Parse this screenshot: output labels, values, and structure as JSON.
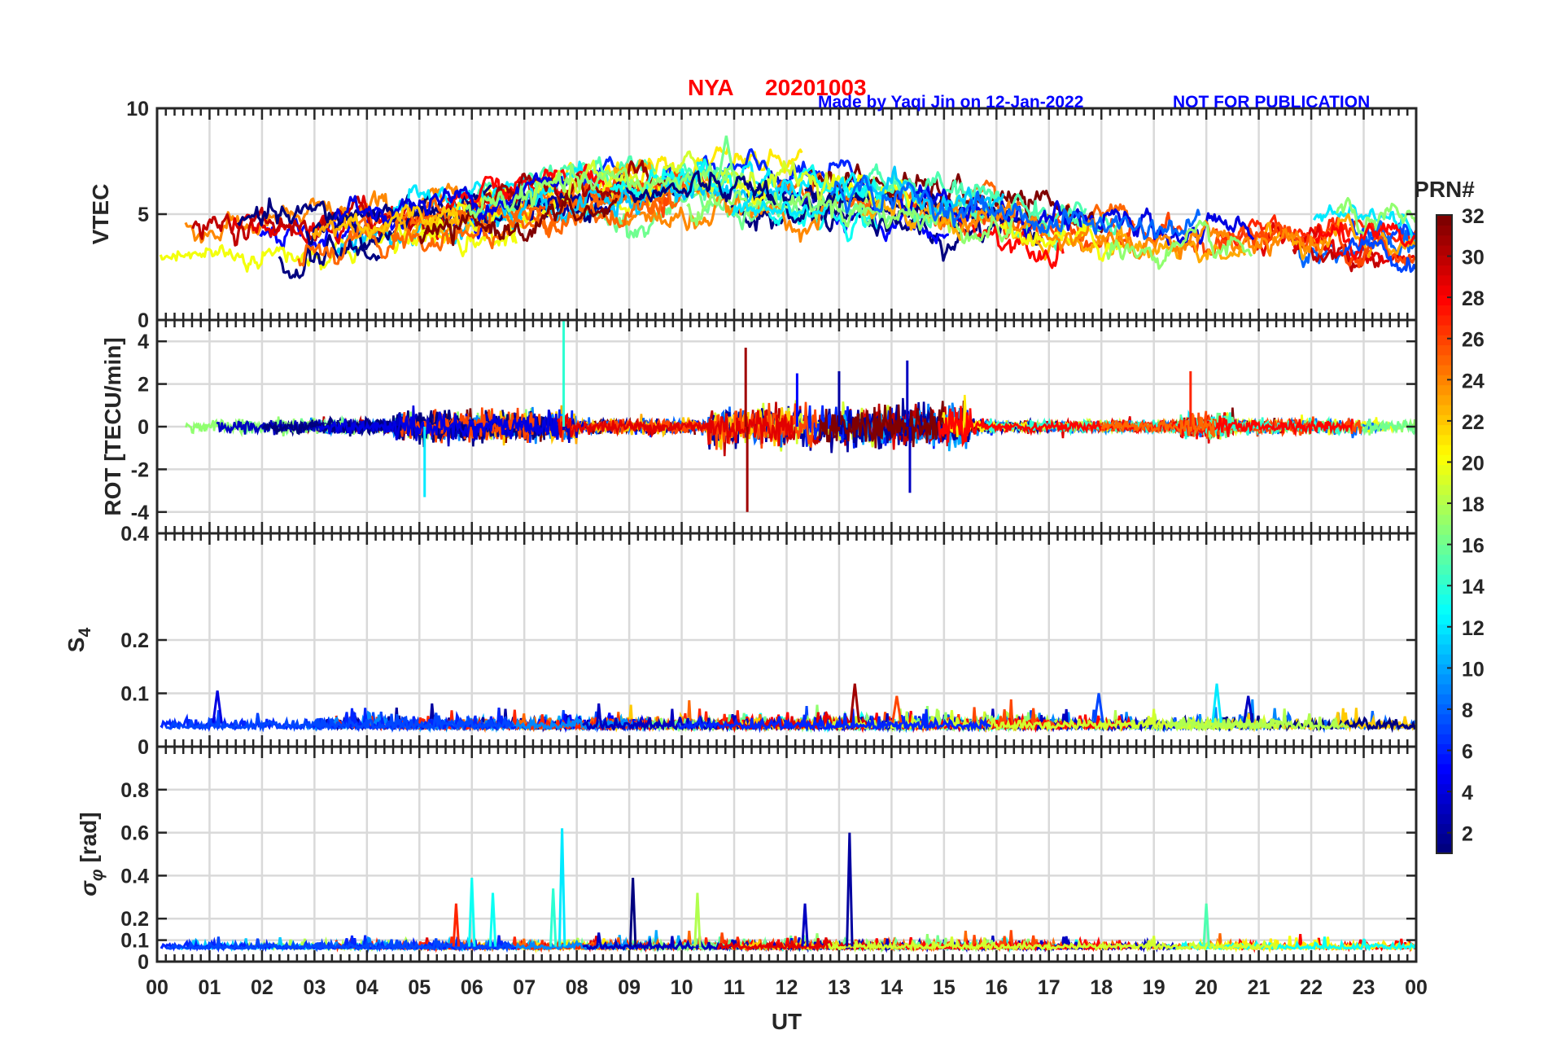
{
  "chart_data": {
    "type": "line",
    "title": {
      "station": "NYA",
      "date": "20201003",
      "credit": "Made by Yaqi Jin on 12-Jan-2022",
      "notice": "NOT FOR PUBLICATION"
    },
    "xlabel": "UT",
    "x_tick_labels": [
      "00",
      "01",
      "02",
      "03",
      "04",
      "05",
      "06",
      "07",
      "08",
      "09",
      "10",
      "11",
      "12",
      "13",
      "14",
      "15",
      "16",
      "17",
      "18",
      "19",
      "20",
      "21",
      "22",
      "23",
      "00"
    ],
    "xlim": [
      0,
      24
    ],
    "grid": true,
    "panels": [
      {
        "key": "vtec",
        "ylabel": "VTEC",
        "ylim": [
          0,
          10
        ],
        "y_tick_labels": [
          {
            "value": 0,
            "text": "0"
          },
          {
            "value": 5,
            "text": "5"
          },
          {
            "value": 10,
            "text": "10"
          }
        ],
        "series_summary": {
          "description_values": "VTEC per PRN, mostly 2.5 to 8",
          "envelope_x": [
            0,
            2,
            4,
            6,
            8,
            10,
            11,
            13,
            15,
            17,
            19,
            21,
            23,
            24
          ],
          "envelope_mean": [
            3.6,
            3.7,
            4.2,
            4.8,
            5.6,
            6.0,
            6.2,
            6.0,
            5.3,
            4.5,
            4.2,
            4.1,
            3.8,
            3.6
          ],
          "peak": {
            "x": 10.85,
            "y": 8.7
          }
        }
      },
      {
        "key": "rot",
        "ylabel": "ROT [TECU/min]",
        "ylim": [
          -5,
          5
        ],
        "y_tick_labels": [
          {
            "value": -4,
            "text": "-4"
          },
          {
            "value": -2,
            "text": "-2"
          },
          {
            "value": 0,
            "text": "0"
          },
          {
            "value": 2,
            "text": "2"
          },
          {
            "value": 4,
            "text": "4"
          }
        ],
        "spikes": [
          {
            "x": 7.75,
            "y": 5.0
          },
          {
            "x": 11.22,
            "y": 3.7
          },
          {
            "x": 11.25,
            "y": -4.0
          },
          {
            "x": 14.3,
            "y": 3.1
          },
          {
            "x": 14.35,
            "y": -3.1
          },
          {
            "x": 5.1,
            "y": -3.3
          },
          {
            "x": 19.7,
            "y": 2.6
          },
          {
            "x": 13.0,
            "y": 2.6
          },
          {
            "x": 12.2,
            "y": 2.5
          }
        ]
      },
      {
        "key": "s4",
        "ylabel": "S",
        "ylabel_sub": "4",
        "ylim": [
          0,
          0.4
        ],
        "y_tick_labels": [
          {
            "value": 0,
            "text": "0"
          },
          {
            "value": 0.1,
            "text": "0.1"
          },
          {
            "value": 0.2,
            "text": "0.2"
          },
          {
            "value": 0.4,
            "text": "0.4"
          }
        ],
        "baseline": 0.04,
        "spikes": [
          {
            "x": 1.15,
            "y": 0.105
          },
          {
            "x": 13.3,
            "y": 0.118
          },
          {
            "x": 20.2,
            "y": 0.118
          },
          {
            "x": 17.95,
            "y": 0.1
          },
          {
            "x": 20.8,
            "y": 0.095
          },
          {
            "x": 14.1,
            "y": 0.095
          }
        ]
      },
      {
        "key": "sigma_phi",
        "ylabel": "σ",
        "ylabel_sub": "φ",
        "ylabel_suffix": " [rad]",
        "ylim": [
          0,
          1
        ],
        "y_tick_labels": [
          {
            "value": 0,
            "text": "0"
          },
          {
            "value": 0.1,
            "text": "0.1"
          },
          {
            "value": 0.2,
            "text": "0.2"
          },
          {
            "value": 0.4,
            "text": "0.4"
          },
          {
            "value": 0.6,
            "text": "0.6"
          },
          {
            "value": 0.8,
            "text": "0.8"
          }
        ],
        "baseline": 0.07,
        "spikes": [
          {
            "x": 7.72,
            "y": 0.62
          },
          {
            "x": 13.2,
            "y": 0.6
          },
          {
            "x": 9.07,
            "y": 0.39
          },
          {
            "x": 6.0,
            "y": 0.39
          },
          {
            "x": 7.55,
            "y": 0.34
          },
          {
            "x": 10.3,
            "y": 0.32
          },
          {
            "x": 12.35,
            "y": 0.27
          },
          {
            "x": 20.0,
            "y": 0.27
          },
          {
            "x": 5.7,
            "y": 0.27
          },
          {
            "x": 6.4,
            "y": 0.32
          }
        ]
      }
    ],
    "colorbar": {
      "label": "PRN#",
      "range": [
        1,
        32
      ],
      "colormap": "jet",
      "tick_labels": [
        "2",
        "4",
        "6",
        "8",
        "10",
        "12",
        "14",
        "16",
        "18",
        "20",
        "22",
        "24",
        "26",
        "28",
        "30",
        "32"
      ]
    }
  }
}
